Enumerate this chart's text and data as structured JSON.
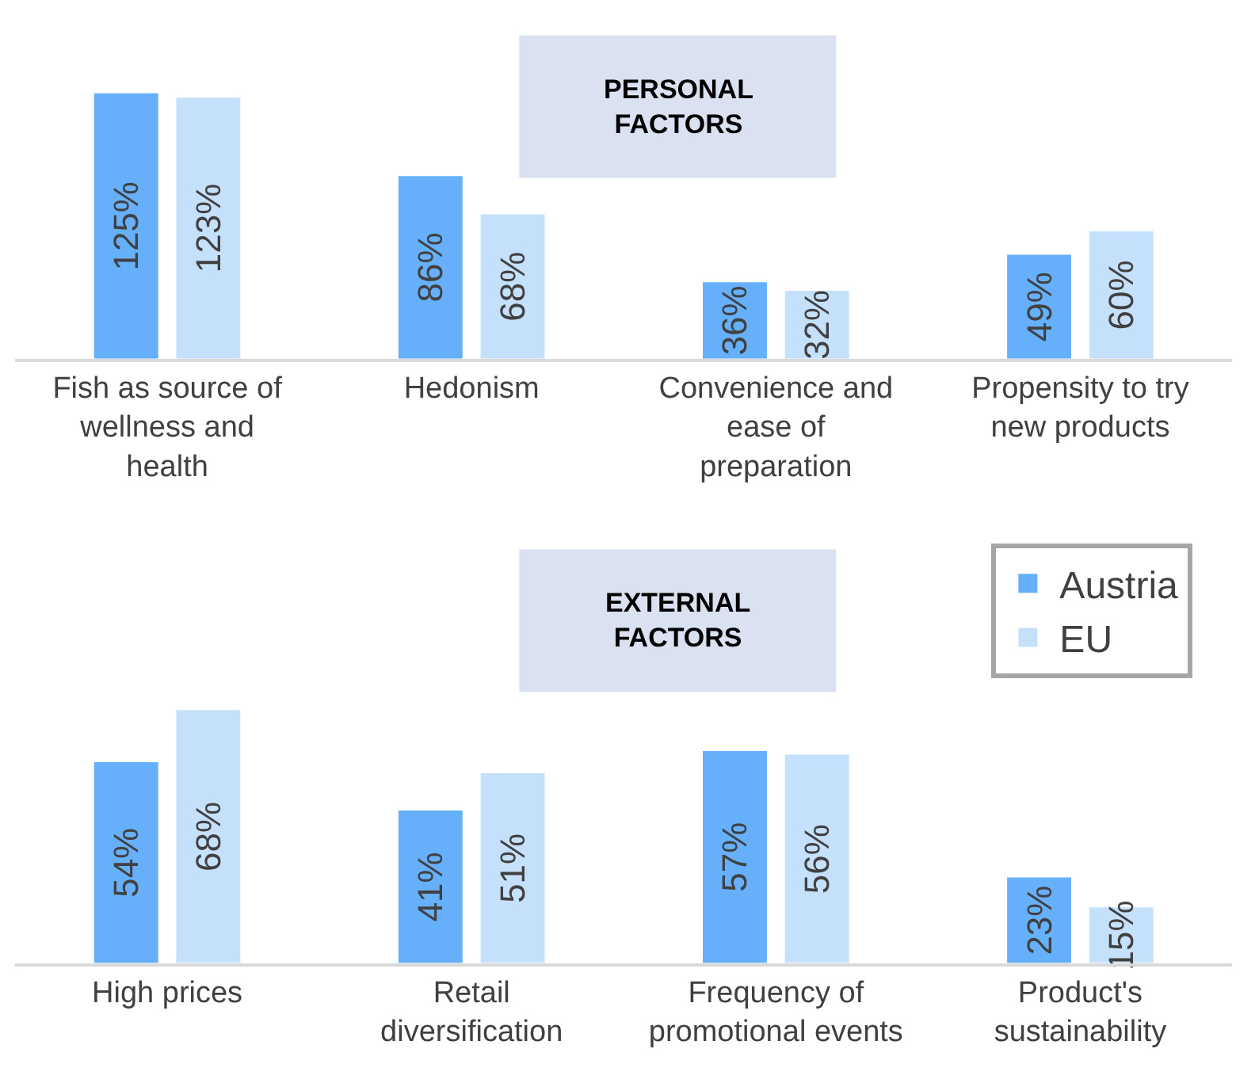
{
  "chart_data": [
    {
      "type": "bar",
      "title": "PERSONAL FACTORS",
      "categories": [
        "Fish as source of wellness and health",
        "Hedonism",
        "Convenience and ease of preparation",
        "Propensity to try new products"
      ],
      "series": [
        {
          "color": "#66b0fb",
          "values": [
            125,
            86,
            36,
            49
          ],
          "value_labels": [
            "125%",
            "86%",
            "36%",
            "49%"
          ]
        },
        {
          "color": "#c5e0fb",
          "values": [
            123,
            68,
            32,
            60
          ],
          "value_labels": [
            "123%",
            "68%",
            "32%",
            "60%"
          ]
        }
      ],
      "tick_labels": "x"
    },
    {
      "type": "bar",
      "title": "EXTERNAL FACTORS",
      "categories": [
        "High prices",
        "Retail diversification",
        "Frequency of promotional events",
        "Product's sustainability"
      ],
      "series": [
        {
          "name": "Austria",
          "color": "#66b0fb",
          "values": [
            54,
            41,
            57,
            23
          ],
          "value_labels": [
            "54%",
            "41%",
            "57%",
            "23%"
          ]
        },
        {
          "name": "EU",
          "color": "#c5e0fb",
          "values": [
            68,
            51,
            56,
            15
          ],
          "value_labels": [
            "68%",
            "51%",
            "56%",
            "15%"
          ]
        }
      ],
      "tick_labels": "x",
      "legend": "top right"
    }
  ]
}
